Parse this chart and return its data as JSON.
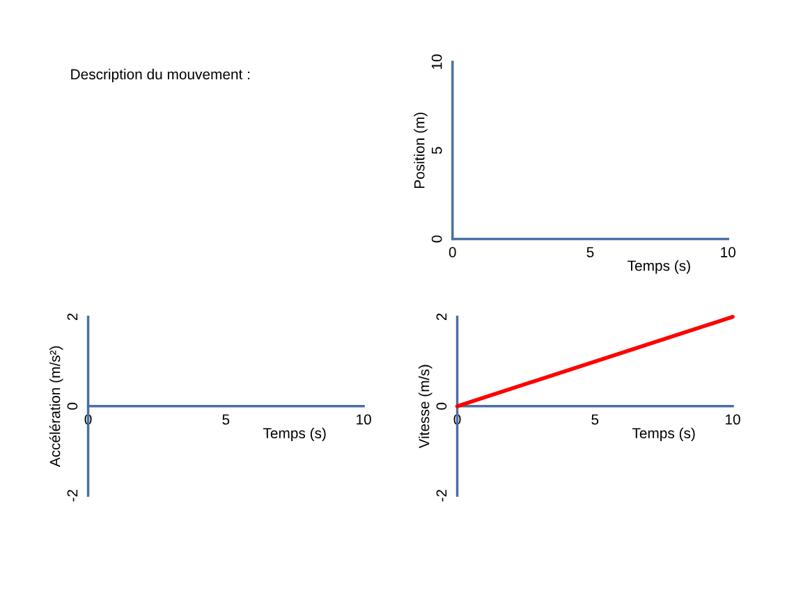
{
  "chart_data": [
    {
      "type": "other",
      "title": "Description du mouvement :"
    },
    {
      "type": "line",
      "xlabel": "Temps (s)",
      "ylabel": "Position (m)",
      "xlim": [
        0,
        10
      ],
      "ylim": [
        0,
        10
      ],
      "xticks": [
        0,
        5,
        10
      ],
      "yticks": [
        0,
        5,
        10
      ],
      "grid": false
    },
    {
      "type": "line",
      "xlabel": "Temps (s)",
      "ylabel": "Accélération (m/s²)",
      "xlim": [
        0,
        10
      ],
      "ylim": [
        -2,
        2
      ],
      "xticks": [
        0,
        5,
        10
      ],
      "yticks": [
        -2,
        0,
        2
      ],
      "grid": false
    },
    {
      "type": "line",
      "xlabel": "Temps (s)",
      "ylabel": "Vitesse (m/s)",
      "xlim": [
        0,
        10
      ],
      "ylim": [
        -2,
        2
      ],
      "xticks": [
        0,
        5,
        10
      ],
      "yticks": [
        -2,
        0,
        2
      ],
      "grid": false,
      "marker": "none",
      "line_style": "solid",
      "series": [
        {
          "color": "#ff0000",
          "x": [
            0,
            10
          ],
          "values": [
            0,
            2
          ]
        }
      ]
    }
  ]
}
